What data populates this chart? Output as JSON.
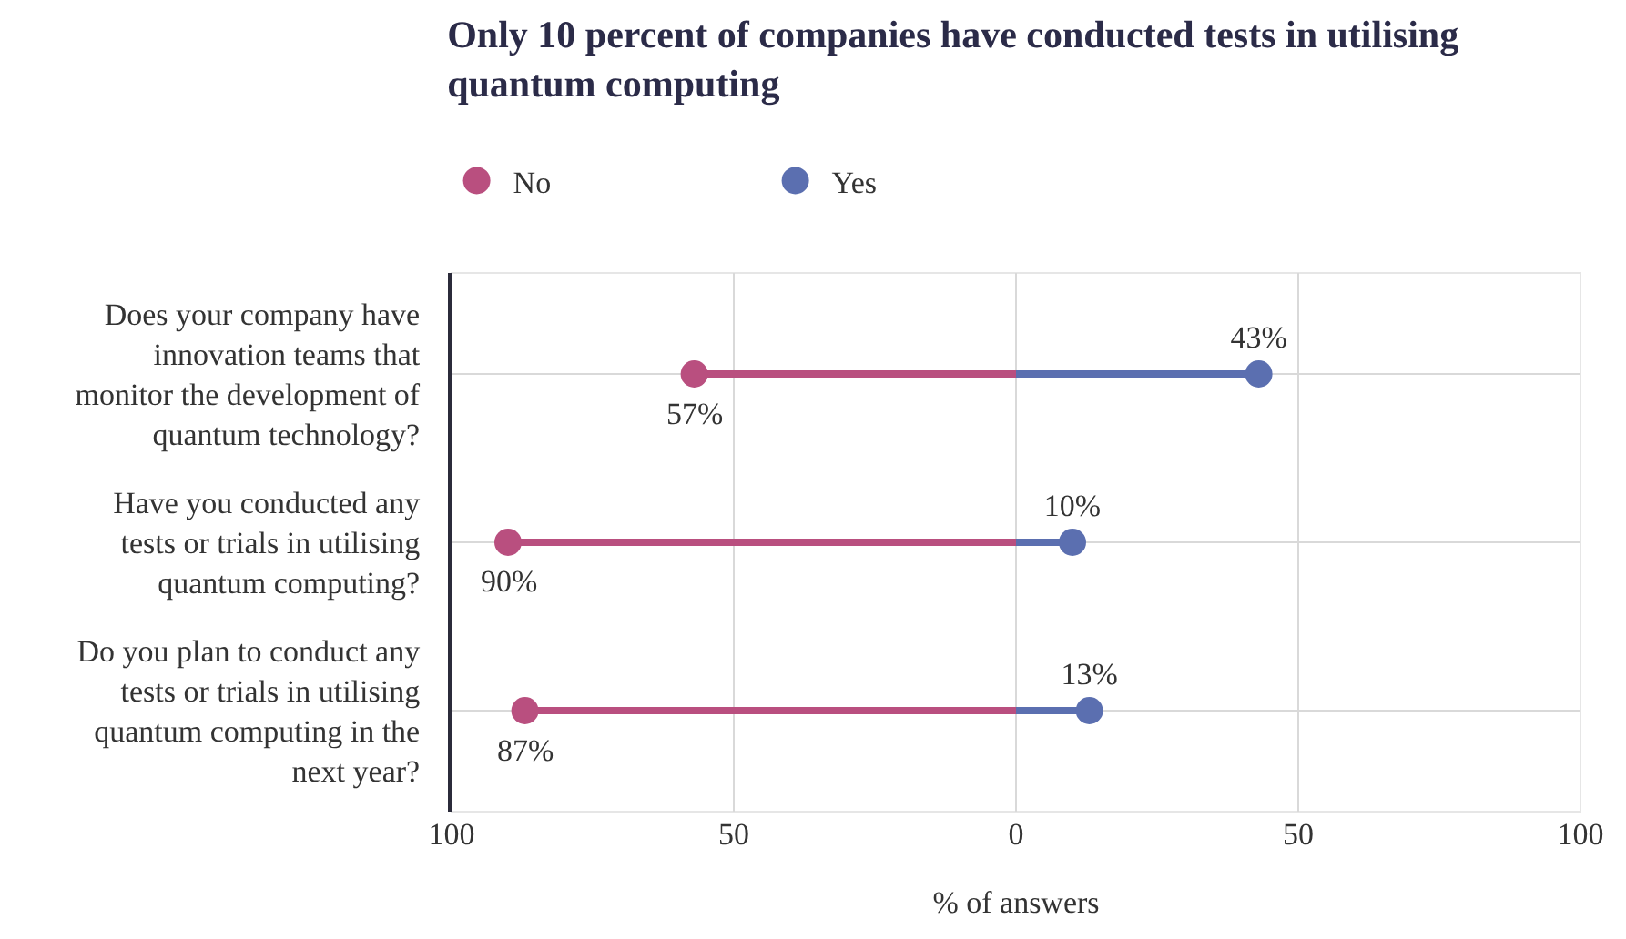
{
  "chart_data": {
    "type": "lollipop",
    "orientation": "horizontal",
    "title": "Only 10 percent of companies have conducted tests in utilising quantum computing",
    "xlabel": "% of answers",
    "categories": [
      "Does your company have innovation teams that monitor the development of quantum technology?",
      "Have you conducted any tests or trials in utilising quantum computing?",
      "Do you plan to conduct any tests or trials in utilising quantum computing in the next year?"
    ],
    "series": [
      {
        "name": "No",
        "color": "#b94f7f",
        "values": [
          -57,
          -90,
          -87
        ]
      },
      {
        "name": "Yes",
        "color": "#5b6fb0",
        "values": [
          43,
          10,
          13
        ],
        "value_labels": [
          "43%",
          "10%",
          "13%"
        ]
      }
    ],
    "annotations": [
      {
        "text": "57%",
        "x": -57,
        "y": "Does your company have innovation teams that monitor the development of quantum technology?"
      },
      {
        "text": "90%",
        "x": -90,
        "y": "Have you conducted any tests or trials in utilising quantum computing?"
      },
      {
        "text": "87%",
        "x": -87,
        "y": "Do you plan to conduct any tests or trials in utilising quantum computing in the next year?"
      }
    ],
    "xlim": [
      -100,
      100
    ],
    "xticks": [
      {
        "value": -100,
        "label": "100"
      },
      {
        "value": -50,
        "label": "50"
      },
      0,
      50,
      100
    ],
    "grid": true,
    "legend": "top left",
    "marker": "circle",
    "line_style": "solid"
  }
}
